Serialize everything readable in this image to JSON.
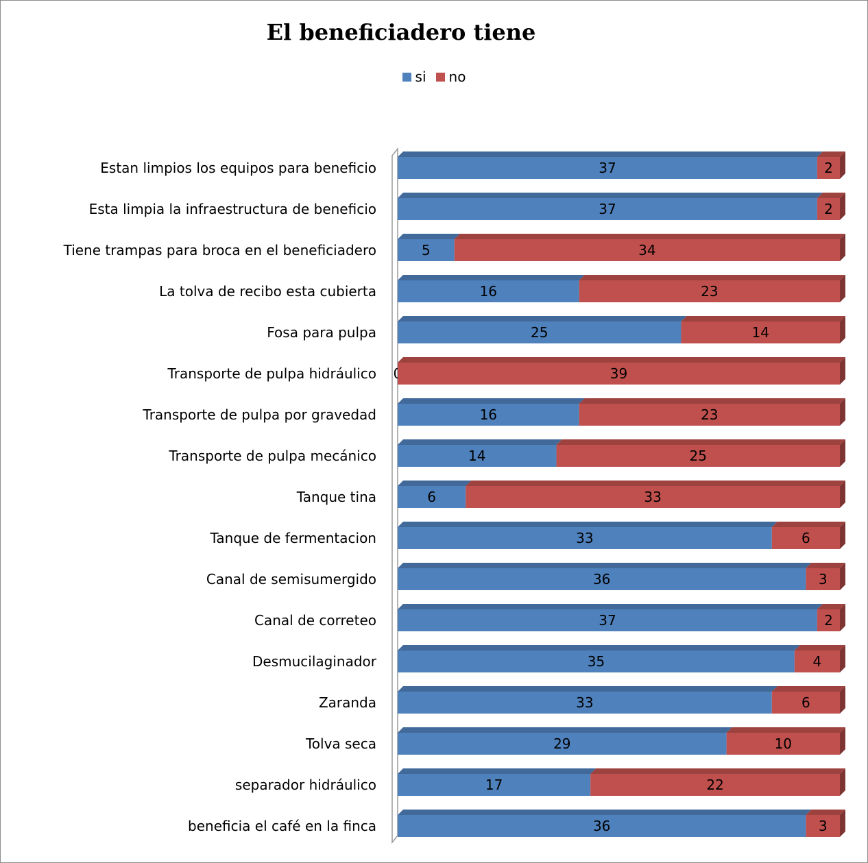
{
  "chart_data": {
    "type": "bar",
    "orientation": "horizontal",
    "stacked": true,
    "title": "El beneficiadero tiene",
    "legend_position": "top",
    "categories": [
      "Estan limpios los equipos para beneficio",
      "Esta limpia la infraestructura de beneficio",
      "Tiene trampas para broca en el beneficiadero",
      "La tolva de recibo esta  cubierta",
      "Fosa para pulpa",
      "Transporte de pulpa hidráulico",
      "Transporte de pulpa por gravedad",
      "Transporte de pulpa mecánico",
      "Tanque tina",
      "Tanque de fermentacion",
      "Canal de  semisumergido",
      "Canal de correteo",
      "Desmucilaginador",
      "Zaranda",
      "Tolva seca",
      "separador hidráulico",
      "beneficia el café en la finca"
    ],
    "series": [
      {
        "name": "si",
        "color": "#4f81bd",
        "values": [
          37,
          37,
          5,
          16,
          25,
          0,
          16,
          14,
          6,
          33,
          36,
          37,
          35,
          33,
          29,
          17,
          36
        ]
      },
      {
        "name": "no",
        "color": "#c0504d",
        "values": [
          2,
          2,
          34,
          23,
          14,
          39,
          23,
          25,
          33,
          6,
          3,
          2,
          4,
          6,
          10,
          22,
          3
        ]
      }
    ],
    "xlim": [
      0,
      39
    ],
    "grid": false
  }
}
